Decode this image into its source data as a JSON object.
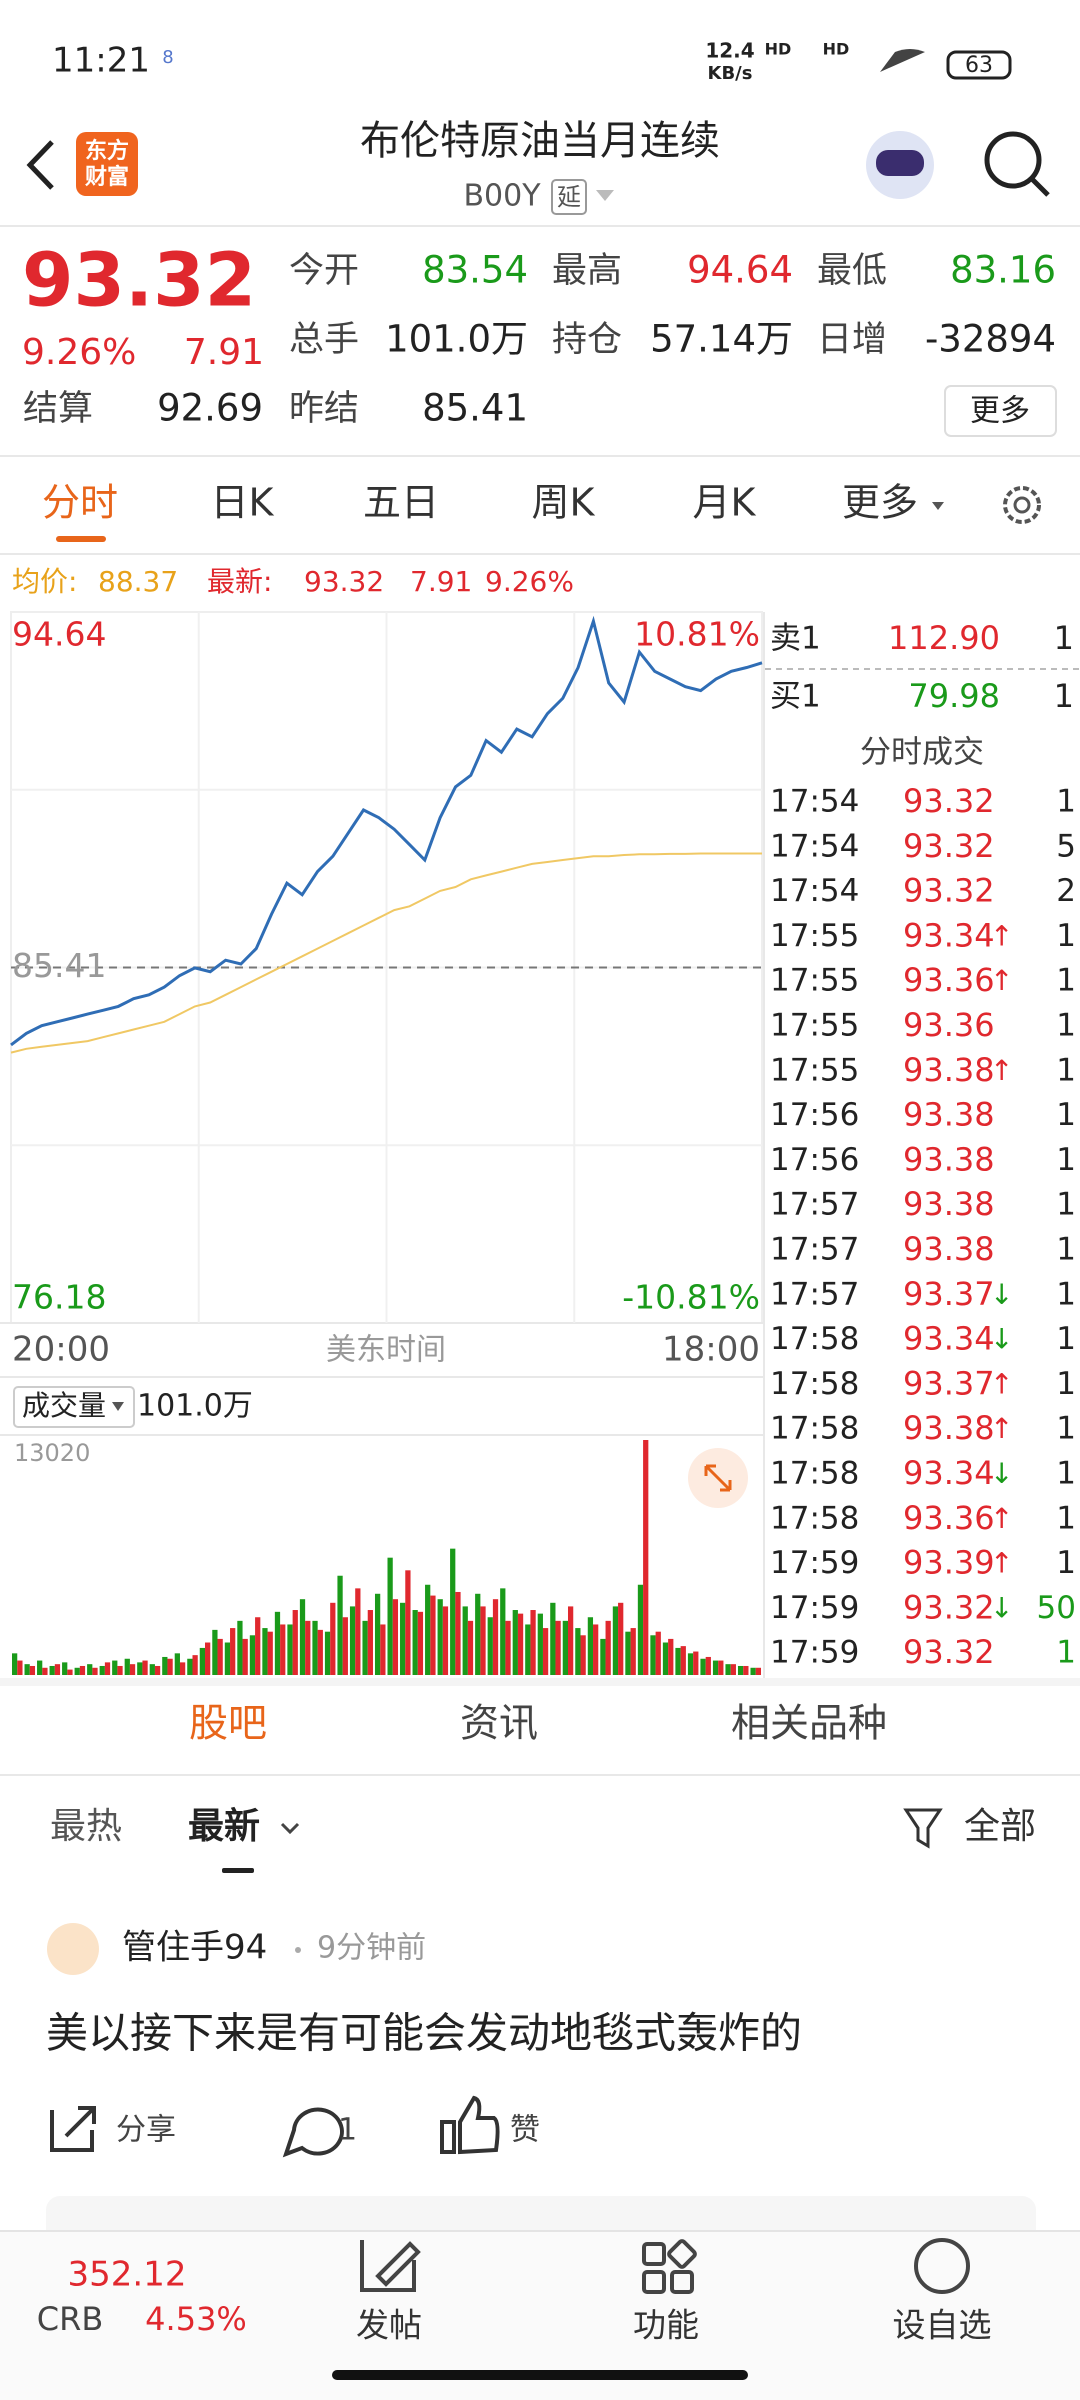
{
  "status": {
    "time": "11:21",
    "badge": "8",
    "speed": "12.4",
    "speed_unit": "KB/s",
    "hd": "HD",
    "battery": "63"
  },
  "header": {
    "logo": [
      "东方",
      "财富"
    ],
    "title": "布伦特原油当月连续",
    "code": "B00Y",
    "tag": "延"
  },
  "quote": {
    "price": "93.32",
    "pct": "9.26%",
    "change": "7.91",
    "fields": [
      {
        "label": "今开",
        "value": "83.54"
      },
      {
        "label": "最高",
        "value": "94.64"
      },
      {
        "label": "最低",
        "value": "83.16"
      },
      {
        "label": "总手",
        "value": "101.0万"
      },
      {
        "label": "持仓",
        "value": "57.14万"
      },
      {
        "label": "日增",
        "value": "-32894"
      },
      {
        "label": "结算",
        "value": "92.69"
      },
      {
        "label": "昨结",
        "value": "85.41"
      }
    ],
    "more": "更多"
  },
  "tabs": [
    "分时",
    "日K",
    "五日",
    "周K",
    "月K",
    "更多"
  ],
  "info": {
    "avg_label": "均价:",
    "avg": "88.37",
    "last_label": "最新:",
    "last": "93.32",
    "change": "7.91",
    "pct": "9.26%"
  },
  "chart_data": [
    {
      "type": "line",
      "ylim": [
        76.18,
        94.64
      ],
      "yticks": [
        94.64,
        85.41,
        76.18
      ],
      "right_labels": [
        "10.81%",
        "-10.81%"
      ],
      "x_labels": [
        "20:00",
        "美东时间",
        "18:00"
      ],
      "series": [
        {
          "color": "#2f6db5",
          "values": [
            83.4,
            83.7,
            83.9,
            84.0,
            84.1,
            84.2,
            84.3,
            84.4,
            84.6,
            84.7,
            84.9,
            85.2,
            85.4,
            85.3,
            85.6,
            85.5,
            85.9,
            86.8,
            87.6,
            87.3,
            87.9,
            88.3,
            88.9,
            89.5,
            89.3,
            89.0,
            88.6,
            88.2,
            89.3,
            90.1,
            90.4,
            91.3,
            91.0,
            91.6,
            91.4,
            92.0,
            92.4,
            93.2,
            94.4,
            92.8,
            92.3,
            93.6,
            93.1,
            92.9,
            92.7,
            92.6,
            92.9,
            93.1,
            93.2,
            93.32
          ]
        },
        {
          "color": "#f0c864",
          "values": [
            83.2,
            83.3,
            83.35,
            83.4,
            83.45,
            83.5,
            83.6,
            83.7,
            83.8,
            83.9,
            84.0,
            84.2,
            84.4,
            84.5,
            84.7,
            84.9,
            85.1,
            85.3,
            85.5,
            85.7,
            85.9,
            86.1,
            86.3,
            86.5,
            86.7,
            86.9,
            87.0,
            87.2,
            87.4,
            87.5,
            87.7,
            87.8,
            87.9,
            88.0,
            88.1,
            88.15,
            88.2,
            88.25,
            88.3,
            88.3,
            88.33,
            88.35,
            88.35,
            88.36,
            88.36,
            88.37,
            88.37,
            88.37,
            88.37,
            88.37
          ]
        }
      ]
    },
    {
      "type": "bar",
      "title": "成交量",
      "total": "101.0万",
      "ylim": [
        0,
        13020
      ],
      "yticks": [
        13020
      ],
      "series": [
        {
          "color": "#1a9a1a",
          "values": [
            1200,
            600,
            800,
            500,
            700,
            400,
            600,
            500,
            800,
            900,
            700,
            600,
            1000,
            1200,
            900,
            1500,
            2500,
            1800,
            3000,
            2200,
            2600,
            3500,
            2800,
            4200,
            3000,
            2400,
            5500,
            3800,
            3000,
            4500,
            6500,
            4000,
            3600,
            5000,
            4200,
            7000,
            3800,
            4500,
            3200,
            4800,
            3600,
            2800,
            3400,
            4000,
            3000,
            2600,
            3200,
            2000,
            3800,
            2400,
            5000,
            2200,
            1800,
            1500,
            1200,
            900,
            800,
            600,
            500,
            400
          ]
        },
        {
          "color": "#e0282e",
          "values": [
            800,
            500,
            400,
            600,
            300,
            500,
            400,
            700,
            500,
            600,
            800,
            500,
            900,
            700,
            1100,
            1800,
            2000,
            2600,
            2000,
            3200,
            2400,
            2800,
            3600,
            3000,
            2500,
            4000,
            3200,
            4800,
            3600,
            2800,
            4200,
            5800,
            3500,
            4400,
            3800,
            4600,
            3000,
            3800,
            4200,
            3000,
            3400,
            3600,
            2600,
            3000,
            3800,
            2200,
            2800,
            3000,
            4000,
            2600,
            13020,
            2400,
            2000,
            1600,
            1300,
            1000,
            800,
            600,
            500,
            400
          ]
        }
      ]
    }
  ],
  "book": {
    "ask_label": "卖1",
    "ask": "112.90",
    "ask_vol": "1",
    "bid_label": "买1",
    "bid": "79.98",
    "bid_vol": "1",
    "title": "分时成交"
  },
  "trades": [
    {
      "t": "17:54",
      "p": "93.32",
      "v": "1"
    },
    {
      "t": "17:54",
      "p": "93.32",
      "v": "5"
    },
    {
      "t": "17:54",
      "p": "93.32",
      "v": "2"
    },
    {
      "t": "17:55",
      "p": "93.34",
      "d": "↑",
      "v": "1"
    },
    {
      "t": "17:55",
      "p": "93.36",
      "d": "↑",
      "v": "1"
    },
    {
      "t": "17:55",
      "p": "93.36",
      "v": "1"
    },
    {
      "t": "17:55",
      "p": "93.38",
      "d": "↑",
      "v": "1"
    },
    {
      "t": "17:56",
      "p": "93.38",
      "v": "1"
    },
    {
      "t": "17:56",
      "p": "93.38",
      "v": "1"
    },
    {
      "t": "17:57",
      "p": "93.38",
      "v": "1"
    },
    {
      "t": "17:57",
      "p": "93.38",
      "v": "1"
    },
    {
      "t": "17:57",
      "p": "93.37",
      "d": "↓",
      "v": "1"
    },
    {
      "t": "17:58",
      "p": "93.34",
      "d": "↓",
      "v": "1"
    },
    {
      "t": "17:58",
      "p": "93.37",
      "d": "↑",
      "v": "1"
    },
    {
      "t": "17:58",
      "p": "93.38",
      "d": "↑",
      "v": "1"
    },
    {
      "t": "17:58",
      "p": "93.34",
      "d": "↓",
      "v": "1"
    },
    {
      "t": "17:58",
      "p": "93.36",
      "d": "↑",
      "v": "1"
    },
    {
      "t": "17:59",
      "p": "93.39",
      "d": "↑",
      "v": "1"
    },
    {
      "t": "17:59",
      "p": "93.32",
      "d": "↓",
      "v": "50",
      "color": "#1a9a1a"
    },
    {
      "t": "17:59",
      "p": "93.32",
      "v": "1",
      "color": "#1a9a1a"
    }
  ],
  "section_tabs": [
    "股吧",
    "资讯",
    "相关品种"
  ],
  "filters": {
    "hot": "最热",
    "new": "最新",
    "all": "全部"
  },
  "post": {
    "user": "管住手94",
    "time": "9分钟前",
    "text": "美以接下来是有可能会发动地毯式轰炸的",
    "share": "分享",
    "comments": "1",
    "like": "赞"
  },
  "bottom": {
    "index": "352.12",
    "index_name": "CRB",
    "index_pct": "4.53%",
    "items": [
      "发帖",
      "功能",
      "设自选"
    ]
  }
}
